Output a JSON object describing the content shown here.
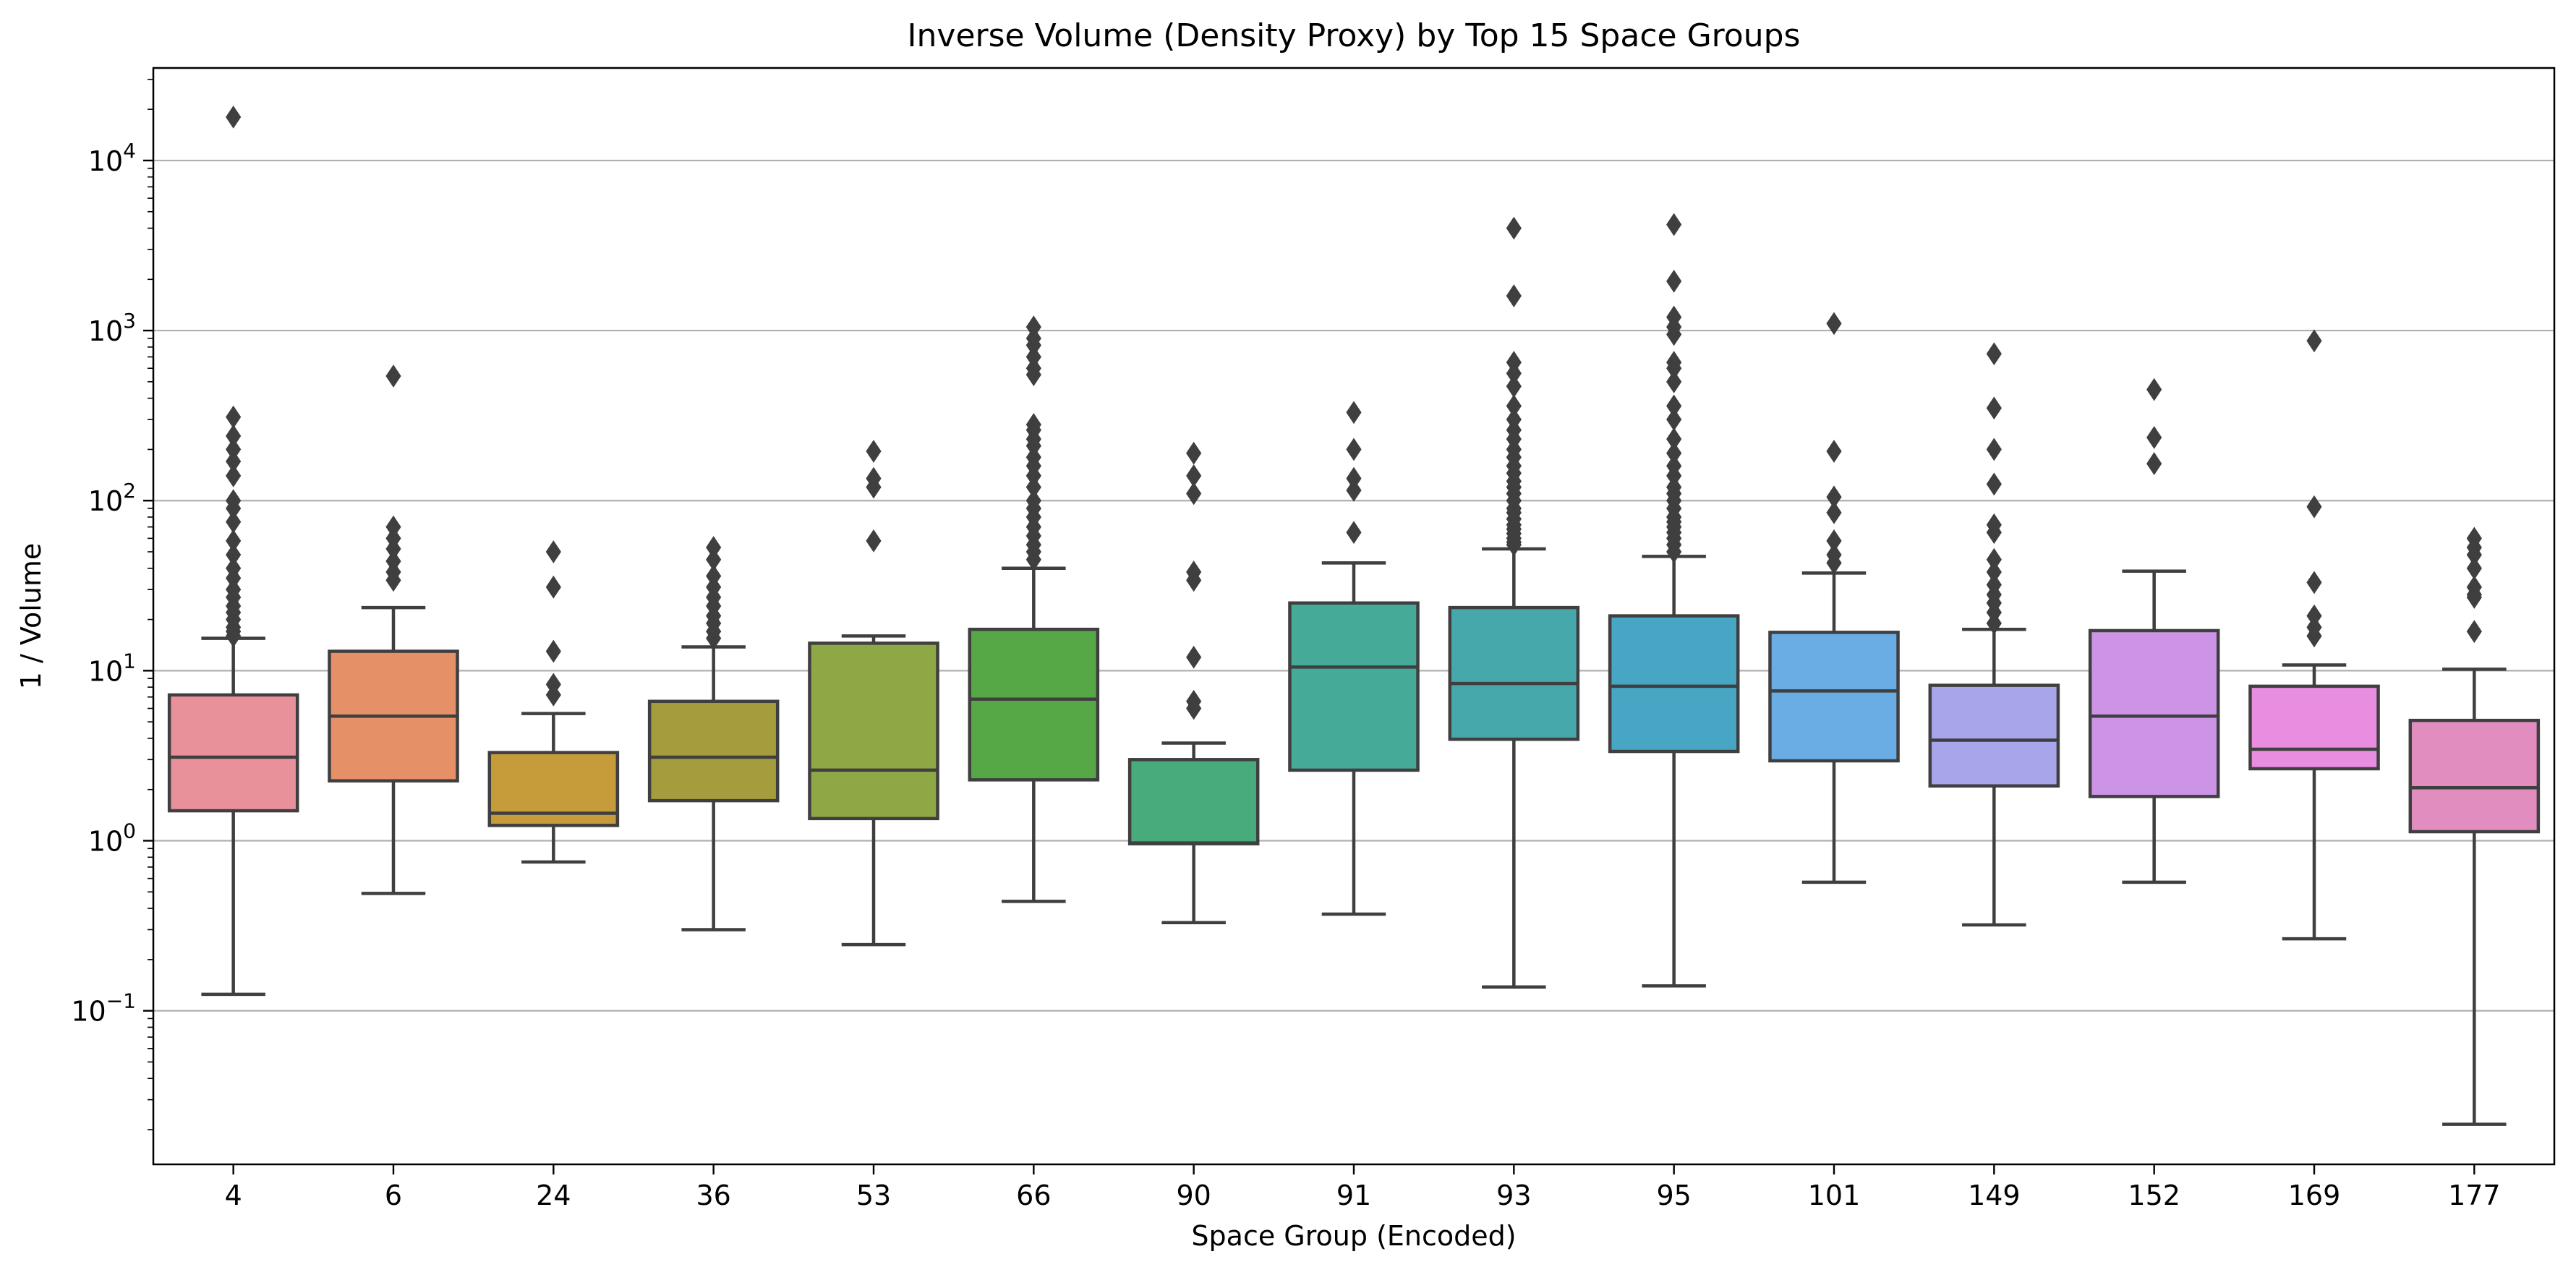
{
  "chart_data": {
    "type": "box",
    "title": "Inverse Volume (Density Proxy) by Top 15 Space Groups",
    "xlabel": "Space Group (Encoded)",
    "ylabel": "1 / Volume",
    "yscale": "log",
    "ylim": [
      0.0125,
      35000
    ],
    "y_ticks": [
      {
        "value": 0.1,
        "base": "10",
        "exp": "−1"
      },
      {
        "value": 1,
        "base": "10",
        "exp": "0"
      },
      {
        "value": 10,
        "base": "10",
        "exp": "1"
      },
      {
        "value": 100,
        "base": "10",
        "exp": "2"
      },
      {
        "value": 1000,
        "base": "10",
        "exp": "3"
      },
      {
        "value": 10000,
        "base": "10",
        "exp": "4"
      }
    ],
    "grid": "y-major",
    "categories": [
      "4",
      "6",
      "24",
      "36",
      "53",
      "66",
      "90",
      "91",
      "93",
      "95",
      "101",
      "149",
      "152",
      "169",
      "177"
    ],
    "boxes": [
      {
        "category": "4",
        "color": "#e8919b",
        "q1": 1.5,
        "median": 3.1,
        "q3": 7.2,
        "whisker_low": 0.125,
        "whisker_high": 15.5,
        "outliers": [
          18000,
          310,
          240,
          200,
          170,
          140,
          100,
          90,
          75,
          58,
          48,
          40,
          35,
          30,
          27,
          24,
          22,
          20,
          18,
          17,
          16
        ]
      },
      {
        "category": "6",
        "color": "#e69068",
        "q1": 2.25,
        "median": 5.4,
        "q3": 13.0,
        "whisker_low": 0.49,
        "whisker_high": 23.5,
        "outliers": [
          540,
          70,
          60,
          52,
          44,
          38,
          34
        ]
      },
      {
        "category": "24",
        "color": "#c69b3a",
        "q1": 1.23,
        "median": 1.45,
        "q3": 3.3,
        "whisker_low": 0.75,
        "whisker_high": 5.6,
        "outliers": [
          50,
          31,
          13,
          8.3,
          7.2
        ]
      },
      {
        "category": "36",
        "color": "#a59c3d",
        "q1": 1.72,
        "median": 3.1,
        "q3": 6.6,
        "whisker_low": 0.3,
        "whisker_high": 13.8,
        "outliers": [
          53,
          45,
          36,
          31,
          27,
          24,
          21,
          19,
          17,
          15.5
        ]
      },
      {
        "category": "53",
        "color": "#8fa846",
        "q1": 1.35,
        "median": 2.6,
        "q3": 14.5,
        "whisker_low": 0.245,
        "whisker_high": 16.0,
        "outliers": [
          195,
          135,
          120,
          58
        ]
      },
      {
        "category": "66",
        "color": "#56a846",
        "q1": 2.28,
        "median": 6.8,
        "q3": 17.5,
        "whisker_low": 0.44,
        "whisker_high": 40,
        "outliers": [
          1050,
          900,
          820,
          700,
          600,
          550,
          280,
          260,
          230,
          210,
          180,
          160,
          140,
          120,
          100,
          90,
          80,
          70,
          62,
          55,
          50,
          45
        ]
      },
      {
        "category": "90",
        "color": "#48ab7c",
        "q1": 0.96,
        "median": 0.97,
        "q3": 3.0,
        "whisker_low": 0.33,
        "whisker_high": 3.75,
        "outliers": [
          190,
          140,
          110,
          38,
          34,
          12,
          6.6,
          6.0
        ]
      },
      {
        "category": "91",
        "color": "#45ab98",
        "q1": 2.6,
        "median": 10.5,
        "q3": 25,
        "whisker_low": 0.37,
        "whisker_high": 43,
        "outliers": [
          330,
          200,
          135,
          115,
          65
        ]
      },
      {
        "category": "93",
        "color": "#47a8ac",
        "q1": 3.95,
        "median": 8.4,
        "q3": 23.5,
        "whisker_low": 0.138,
        "whisker_high": 52,
        "outliers": [
          4000,
          1600,
          650,
          560,
          470,
          360,
          300,
          260,
          230,
          200,
          180,
          160,
          145,
          130,
          120,
          110,
          100,
          90,
          85,
          78,
          72,
          68,
          64,
          60,
          57,
          55
        ]
      },
      {
        "category": "95",
        "color": "#46a6c4",
        "q1": 3.35,
        "median": 8.1,
        "q3": 21,
        "whisker_low": 0.14,
        "whisker_high": 47,
        "outliers": [
          4200,
          1950,
          1200,
          1050,
          950,
          650,
          600,
          500,
          360,
          300,
          230,
          190,
          160,
          140,
          120,
          110,
          100,
          90,
          80,
          75,
          70,
          65,
          60,
          55,
          50
        ]
      },
      {
        "category": "101",
        "color": "#6aade4",
        "q1": 2.95,
        "median": 7.6,
        "q3": 16.8,
        "whisker_low": 0.57,
        "whisker_high": 37.5,
        "outliers": [
          1100,
          195,
          105,
          85,
          58,
          48,
          43
        ]
      },
      {
        "category": "149",
        "color": "#a9a5ea",
        "q1": 2.1,
        "median": 3.9,
        "q3": 8.2,
        "whisker_low": 0.32,
        "whisker_high": 17.5,
        "outliers": [
          730,
          350,
          200,
          125,
          72,
          65,
          45,
          38,
          32,
          28,
          25,
          22,
          19
        ]
      },
      {
        "category": "152",
        "color": "#cd93e6",
        "q1": 1.82,
        "median": 5.4,
        "q3": 17.2,
        "whisker_low": 0.57,
        "whisker_high": 38.5,
        "outliers": [
          450,
          235,
          165
        ]
      },
      {
        "category": "169",
        "color": "#e88ddf",
        "q1": 2.65,
        "median": 3.45,
        "q3": 8.1,
        "whisker_low": 0.265,
        "whisker_high": 10.8,
        "outliers": [
          870,
          92,
          33,
          21,
          18,
          16
        ]
      },
      {
        "category": "177",
        "color": "#e28dbf",
        "q1": 1.13,
        "median": 2.05,
        "q3": 5.1,
        "whisker_low": 0.0215,
        "whisker_high": 10.2,
        "outliers": [
          60,
          53,
          48,
          40,
          31,
          28,
          27,
          17
        ]
      }
    ]
  }
}
